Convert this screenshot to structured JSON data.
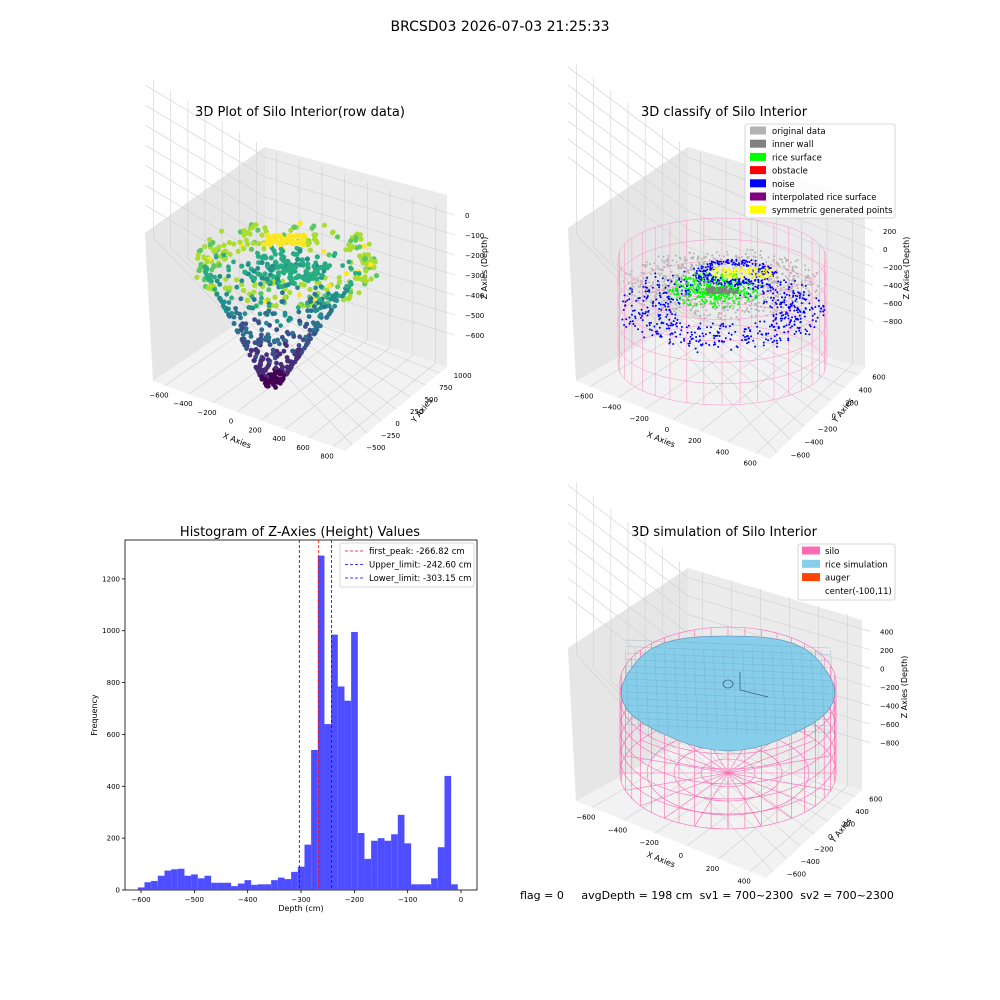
{
  "figure": {
    "suptitle": "BRCSD03 2026-07-03 21:25:33"
  },
  "panels": {
    "raw": {
      "title": "3D Plot of Silo Interior(row data)",
      "xlabel": "X Axies",
      "ylabel": "Y Axies",
      "zlabel": "Z Axies (Depth)",
      "xticks": [
        "−600",
        "−400",
        "−200",
        "0",
        "200",
        "400",
        "600",
        "800"
      ],
      "yticks": [
        "−500",
        "−250",
        "0",
        "250",
        "500",
        "750",
        "1000"
      ],
      "zticks": [
        "0",
        "−100",
        "−200",
        "−300",
        "−400",
        "−500",
        "−600"
      ]
    },
    "classify": {
      "title": "3D classify of Silo Interior",
      "xlabel": "X Axies",
      "ylabel": "Y Axies",
      "zlabel": "Z Axies (Depth)",
      "xticks": [
        "−600",
        "−400",
        "−200",
        "0",
        "200",
        "400",
        "600"
      ],
      "yticks": [
        "−600",
        "−400",
        "−200",
        "0",
        "200",
        "400",
        "600"
      ],
      "zticks": [
        "200",
        "0",
        "−200",
        "−400",
        "−600",
        "−800"
      ],
      "legend": [
        {
          "label": "original data",
          "color": "#b3b3b3"
        },
        {
          "label": "inner wall",
          "color": "#808080"
        },
        {
          "label": "rice surface",
          "color": "#00ff00"
        },
        {
          "label": "obstacle",
          "color": "#ff0000"
        },
        {
          "label": "noise",
          "color": "#0000ff"
        },
        {
          "label": "interpolated rice surface",
          "color": "#800080"
        },
        {
          "label": "symmetric generated points",
          "color": "#ffff00"
        }
      ]
    },
    "simulation": {
      "title": "3D simulation of Silo Interior",
      "xlabel": "X Axies",
      "ylabel": "Y Axies",
      "zlabel": "Z Axies (Depth)",
      "xticks": [
        "−600",
        "−400",
        "−200",
        "0",
        "200",
        "400"
      ],
      "yticks": [
        "−600",
        "−400",
        "−200",
        "0",
        "200",
        "400",
        "600"
      ],
      "zticks": [
        "400",
        "200",
        "0",
        "−200",
        "−400",
        "−600",
        "−800"
      ],
      "legend": [
        {
          "label": "silo",
          "color": "#ff69b4"
        },
        {
          "label": "rice simulation",
          "color": "#87ceeb"
        },
        {
          "label": "auger",
          "color": "#ff4500"
        },
        {
          "label": "center(-100,11)",
          "color": ""
        }
      ]
    }
  },
  "chart_data": {
    "type": "bar",
    "title": "Histogram of Z-Axies (Height) Values",
    "xlabel": "Depth (cm)",
    "ylabel": "Frequency",
    "xlim": [
      -630,
      30
    ],
    "ylim": [
      0,
      1350
    ],
    "xticks": [
      -600,
      -500,
      -400,
      -300,
      -200,
      -100,
      0
    ],
    "yticks": [
      0,
      200,
      400,
      600,
      800,
      1000,
      1200
    ],
    "bar_color": "#4444ff",
    "bin_width": 12.5,
    "bin_starts": [
      -606,
      -593.5,
      -581,
      -568.5,
      -556,
      -543.5,
      -531,
      -518.5,
      -506,
      -493.5,
      -481,
      -468.5,
      -456,
      -443.5,
      -431,
      -418.5,
      -406,
      -393.5,
      -381,
      -368.5,
      -356,
      -343.5,
      -331,
      -318.5,
      -306,
      -293.5,
      -281,
      -268.5,
      -256,
      -243.5,
      -231,
      -218.5,
      -206,
      -193.5,
      -181,
      -168.5,
      -156,
      -143.5,
      -131,
      -118.5,
      -106,
      -93.5,
      -81,
      -68.5,
      -56,
      -43.5,
      -31,
      -18.5
    ],
    "values": [
      10,
      30,
      35,
      55,
      75,
      80,
      82,
      55,
      60,
      45,
      55,
      28,
      28,
      28,
      15,
      25,
      38,
      20,
      22,
      22,
      38,
      48,
      42,
      70,
      90,
      175,
      540,
      1290,
      640,
      985,
      785,
      730,
      995,
      220,
      120,
      190,
      200,
      190,
      215,
      290,
      180,
      22,
      22,
      22,
      45,
      165,
      440,
      22
    ],
    "vlines": [
      {
        "label": "first_peak: -266.82 cm",
        "x": -266.82,
        "color": "#ff0000"
      },
      {
        "label": "Upper_limit: -242.60 cm",
        "x": -242.6,
        "color": "#0000ff"
      },
      {
        "label": "Lower_limit: -303.15 cm",
        "x": -303.15,
        "color": "#0000ff"
      }
    ]
  },
  "footer": {
    "flag": "flag = 0",
    "avg_depth": "avgDepth = 198 cm",
    "sv1": "sv1 = 700~2300",
    "sv2": "sv2 = 700~2300"
  }
}
